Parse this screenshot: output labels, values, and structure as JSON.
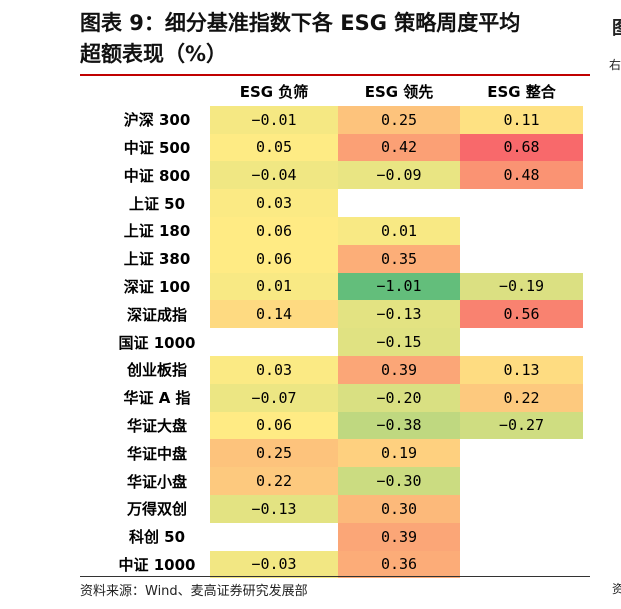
{
  "title_line1": "图表 9：细分基准指数下各 ESG 策略周度平均",
  "title_line2": "超额表现（%）",
  "edge": {
    "title": "图",
    "mark": "右",
    "foot": "资"
  },
  "table": {
    "headers": [
      "",
      "ESG 负筛",
      "ESG 领先",
      "ESG 整合"
    ],
    "rows": [
      {
        "label": "沪深 300",
        "cells": [
          "-0.01",
          "0.25",
          "0.11"
        ]
      },
      {
        "label": "中证 500",
        "cells": [
          "0.05",
          "0.42",
          "0.68"
        ]
      },
      {
        "label": "中证 800",
        "cells": [
          "-0.04",
          "-0.09",
          "0.48"
        ]
      },
      {
        "label": "上证 50",
        "cells": [
          "0.03",
          "",
          ""
        ]
      },
      {
        "label": "上证 180",
        "cells": [
          "0.06",
          "0.01",
          ""
        ]
      },
      {
        "label": "上证 380",
        "cells": [
          "0.06",
          "0.35",
          ""
        ]
      },
      {
        "label": "深证 100",
        "cells": [
          "0.01",
          "-1.01",
          "-0.19"
        ]
      },
      {
        "label": "深证成指",
        "cells": [
          "0.14",
          "-0.13",
          "0.56"
        ]
      },
      {
        "label": "国证 1000",
        "cells": [
          "",
          "-0.15",
          ""
        ]
      },
      {
        "label": "创业板指",
        "cells": [
          "0.03",
          "0.39",
          "0.13"
        ]
      },
      {
        "label": "华证 A 指",
        "cells": [
          "-0.07",
          "-0.20",
          "0.22"
        ]
      },
      {
        "label": "华证大盘",
        "cells": [
          "0.06",
          "-0.38",
          "-0.27"
        ]
      },
      {
        "label": "华证中盘",
        "cells": [
          "0.25",
          "0.19",
          ""
        ]
      },
      {
        "label": "华证小盘",
        "cells": [
          "0.22",
          "-0.30",
          ""
        ]
      },
      {
        "label": "万得双创",
        "cells": [
          "-0.13",
          "0.30",
          ""
        ]
      },
      {
        "label": "科创 50",
        "cells": [
          "",
          "0.39",
          ""
        ]
      },
      {
        "label": "中证 1000",
        "cells": [
          "-0.03",
          "0.36",
          ""
        ]
      }
    ]
  },
  "heat_colors": {
    "low": "#63be7b",
    "mid": "#ffeb84",
    "high": "#f8696b"
  },
  "source": "资料来源：Wind、麦高证券研究发展部"
}
